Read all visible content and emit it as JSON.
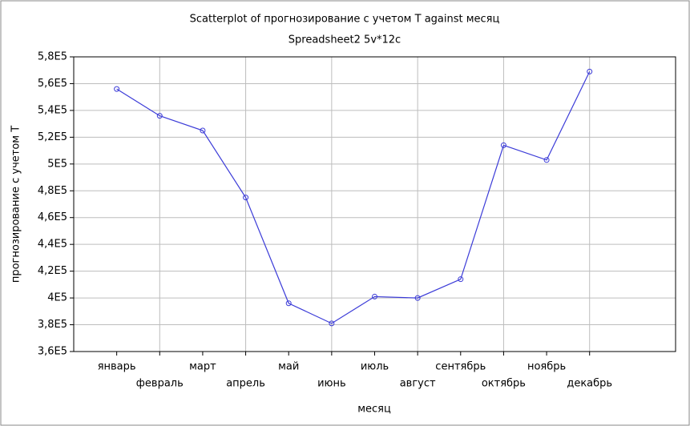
{
  "chart_data": {
    "type": "line",
    "title": "Scatterplot of прогнозирование с  учетом Т against месяц",
    "subtitle": "Spreadsheet2 5v*12c",
    "x_label": "месяц",
    "y_label": "прогнозирование с  учетом Т",
    "categories": [
      "январь",
      "февраль",
      "март",
      "апрель",
      "май",
      "июнь",
      "июль",
      "август",
      "сентябрь",
      "октябрь",
      "ноябрь",
      "декабрь"
    ],
    "series": [
      {
        "name": "прогнозирование с  учетом Т",
        "color": "#3c3cd8",
        "values": [
          556000,
          536000,
          525000,
          475000,
          396000,
          381000,
          401000,
          400000,
          414000,
          514000,
          503000,
          569000
        ]
      }
    ],
    "ylim": [
      360000,
      580000
    ],
    "yticks": [
      {
        "value": 360000,
        "label": "3,6E5"
      },
      {
        "value": 380000,
        "label": "3,8E5"
      },
      {
        "value": 400000,
        "label": "4E5"
      },
      {
        "value": 420000,
        "label": "4,2E5"
      },
      {
        "value": 440000,
        "label": "4,4E5"
      },
      {
        "value": 460000,
        "label": "4,6E5"
      },
      {
        "value": 480000,
        "label": "4,8E5"
      },
      {
        "value": 500000,
        "label": "5E5"
      },
      {
        "value": 520000,
        "label": "5,2E5"
      },
      {
        "value": 540000,
        "label": "5,4E5"
      },
      {
        "value": 560000,
        "label": "5,6E5"
      },
      {
        "value": 580000,
        "label": "5,8E5"
      }
    ],
    "grid": true
  }
}
